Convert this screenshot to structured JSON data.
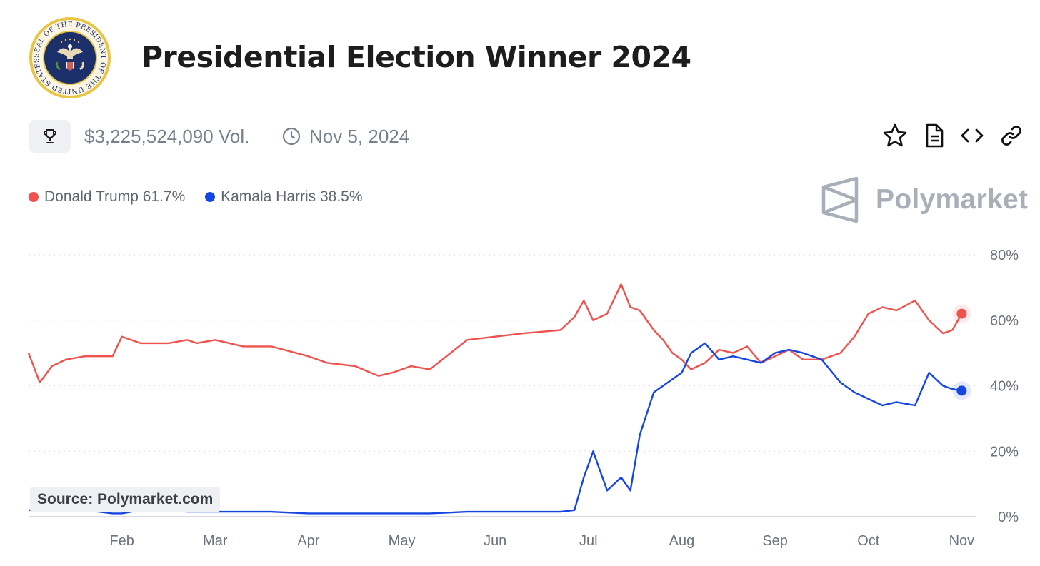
{
  "header": {
    "title": "Presidential Election Winner 2024",
    "seal_text": "SEAL OF THE PRESIDENT OF THE UNITED STATES"
  },
  "meta": {
    "volume": "$3,225,524,090 Vol.",
    "end_date": "Nov 5, 2024"
  },
  "brand": {
    "name": "Polymarket"
  },
  "source": "Source: Polymarket.com",
  "icons": [
    "trophy-icon",
    "clock-icon",
    "star-icon",
    "document-icon",
    "code-icon",
    "link-icon",
    "polymarket-logo-icon",
    "presidential-seal"
  ],
  "legend": [
    {
      "label": "Donald Trump 61.7%",
      "color": "#f0534e"
    },
    {
      "label": "Kamala Harris 38.5%",
      "color": "#1646e0"
    }
  ],
  "chart_data": {
    "type": "line",
    "x_unit": "month",
    "x": [
      0.0,
      0.12,
      0.25,
      0.4,
      0.6,
      0.9,
      1.0,
      1.2,
      1.5,
      1.7,
      1.8,
      2.0,
      2.3,
      2.6,
      3.0,
      3.2,
      3.5,
      3.75,
      3.9,
      4.1,
      4.3,
      4.7,
      5.0,
      5.3,
      5.7,
      5.85,
      5.95,
      6.05,
      6.2,
      6.35,
      6.45,
      6.55,
      6.7,
      6.8,
      6.9,
      7.0,
      7.1,
      7.25,
      7.4,
      7.55,
      7.7,
      7.85,
      8.0,
      8.15,
      8.3,
      8.5,
      8.7,
      8.85,
      9.0,
      9.15,
      9.3,
      9.5,
      9.65,
      9.8,
      9.9,
      10.0
    ],
    "x_ticks": [
      "Feb",
      "Mar",
      "Apr",
      "May",
      "Jun",
      "Jul",
      "Aug",
      "Sep",
      "Oct",
      "Nov"
    ],
    "x_tick_positions": [
      1,
      2,
      3,
      4,
      5,
      6,
      7,
      8,
      9,
      10
    ],
    "series": [
      {
        "name": "Donald Trump",
        "color": "#f0534e",
        "values": [
          50,
          41,
          46,
          48,
          49,
          49,
          55,
          53,
          53,
          54,
          53,
          54,
          52,
          52,
          49,
          47,
          46,
          43,
          44,
          46,
          45,
          54,
          55,
          56,
          57,
          61,
          66,
          60,
          62,
          71,
          64,
          63,
          57,
          54,
          50,
          48,
          45,
          47,
          51,
          50,
          52,
          47,
          49,
          51,
          48,
          48,
          50,
          55,
          62,
          64,
          63,
          66,
          60,
          56,
          57,
          62
        ]
      },
      {
        "name": "Kamala Harris",
        "color": "#1646e0",
        "values": [
          2,
          2,
          2,
          2,
          2,
          1,
          1,
          2,
          2,
          1.5,
          1.5,
          1.5,
          1.5,
          1.5,
          1,
          1,
          1,
          1,
          1,
          1,
          1,
          1.5,
          1.5,
          1.5,
          1.5,
          2,
          12,
          20,
          8,
          12,
          8,
          25,
          38,
          40,
          42,
          44,
          50,
          53,
          48,
          49,
          48,
          47,
          50,
          51,
          50,
          48,
          41,
          38,
          36,
          34,
          35,
          34,
          44,
          40,
          39,
          38.5
        ]
      }
    ],
    "y_ticks": [
      "0%",
      "20%",
      "40%",
      "60%",
      "80%"
    ],
    "y_tick_values": [
      0,
      20,
      40,
      60,
      80
    ],
    "ylim": [
      0,
      80
    ],
    "y_axis_position": "right",
    "grid": "horizontal dotted",
    "legend_position": "top-left"
  }
}
